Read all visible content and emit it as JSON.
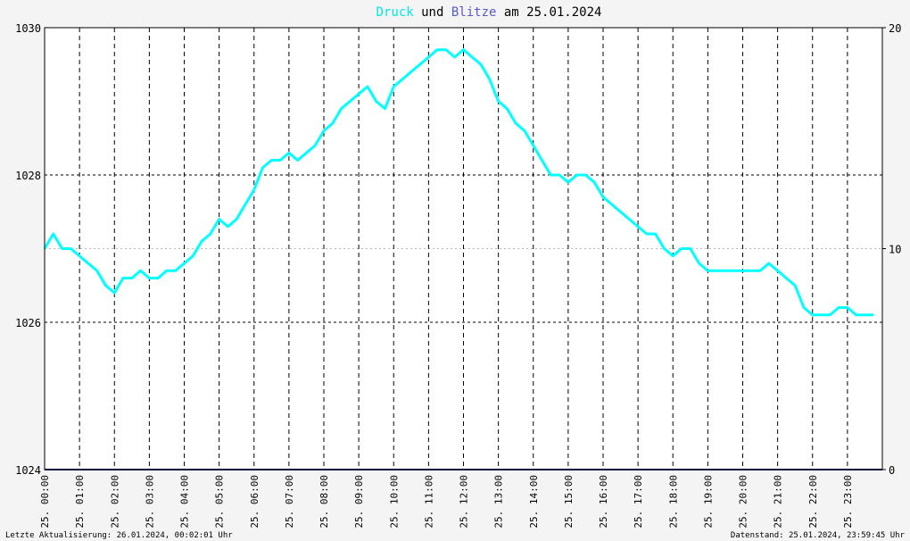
{
  "chart_data": {
    "type": "line",
    "title_parts": [
      {
        "text": "Druck",
        "color": "#00e8e8"
      },
      {
        "text": " und ",
        "color": "#000000"
      },
      {
        "text": "Blitze",
        "color": "#5a5ac8"
      },
      {
        "text": " am 25.01.2024",
        "color": "#000000"
      }
    ],
    "y_left": {
      "min": 1024,
      "max": 1030,
      "ticks": [
        1024,
        1026,
        1028,
        1030
      ]
    },
    "y_right": {
      "min": 0,
      "max": 20,
      "ticks": [
        0,
        10,
        20
      ]
    },
    "x_range_hours": [
      0,
      24
    ],
    "x_ticks": [
      "25. 00:00",
      "25. 01:00",
      "25. 02:00",
      "25. 03:00",
      "25. 04:00",
      "25. 05:00",
      "25. 06:00",
      "25. 07:00",
      "25. 08:00",
      "25. 09:00",
      "25. 10:00",
      "25. 11:00",
      "25. 12:00",
      "25. 13:00",
      "25. 14:00",
      "25. 15:00",
      "25. 16:00",
      "25. 17:00",
      "25. 18:00",
      "25. 19:00",
      "25. 20:00",
      "25. 21:00",
      "25. 22:00",
      "25. 23:00"
    ],
    "grid": true,
    "series": [
      {
        "name": "Druck",
        "color": "#00ffff",
        "axis": "left",
        "x_hours": [
          0,
          0.25,
          0.5,
          0.75,
          1,
          1.25,
          1.5,
          1.75,
          2,
          2.25,
          2.5,
          2.75,
          3,
          3.25,
          3.5,
          3.75,
          4,
          4.25,
          4.5,
          4.75,
          5,
          5.25,
          5.5,
          5.75,
          6,
          6.25,
          6.5,
          6.75,
          7,
          7.25,
          7.5,
          7.75,
          8,
          8.25,
          8.5,
          8.75,
          9,
          9.25,
          9.5,
          9.75,
          10,
          10.25,
          10.5,
          10.75,
          11,
          11.25,
          11.5,
          11.75,
          12,
          12.25,
          12.5,
          12.75,
          13,
          13.25,
          13.5,
          13.75,
          14,
          14.25,
          14.5,
          14.75,
          15,
          15.25,
          15.5,
          15.75,
          16,
          16.25,
          16.5,
          16.75,
          17,
          17.25,
          17.5,
          17.75,
          18,
          18.25,
          18.5,
          18.75,
          19,
          19.25,
          19.5,
          19.75,
          20,
          20.25,
          20.5,
          20.75,
          21,
          21.25,
          21.5,
          21.75,
          22,
          22.25,
          22.5,
          22.75,
          23,
          23.25,
          23.5,
          23.75
        ],
        "values": [
          1027.0,
          1027.2,
          1027.0,
          1027.0,
          1026.9,
          1026.8,
          1026.7,
          1026.5,
          1026.4,
          1026.6,
          1026.6,
          1026.7,
          1026.6,
          1026.6,
          1026.7,
          1026.7,
          1026.8,
          1026.9,
          1027.1,
          1027.2,
          1027.4,
          1027.3,
          1027.4,
          1027.6,
          1027.8,
          1028.1,
          1028.2,
          1028.2,
          1028.3,
          1028.2,
          1028.3,
          1028.4,
          1028.6,
          1028.7,
          1028.9,
          1029.0,
          1029.1,
          1029.2,
          1029.0,
          1028.9,
          1029.2,
          1029.3,
          1029.4,
          1029.5,
          1029.6,
          1029.7,
          1029.7,
          1029.6,
          1029.7,
          1029.6,
          1029.5,
          1029.3,
          1029.0,
          1028.9,
          1028.7,
          1028.6,
          1028.4,
          1028.2,
          1028.0,
          1028.0,
          1027.9,
          1028.0,
          1028.0,
          1027.9,
          1027.7,
          1027.6,
          1027.5,
          1027.4,
          1027.3,
          1027.2,
          1027.2,
          1027.0,
          1026.9,
          1027.0,
          1027.0,
          1026.8,
          1026.7,
          1026.7,
          1026.7,
          1026.7,
          1026.7,
          1026.7,
          1026.7,
          1026.8,
          1026.7,
          1026.6,
          1026.5,
          1026.2,
          1026.1,
          1026.1,
          1026.1,
          1026.2,
          1026.2,
          1026.1,
          1026.1,
          1026.1
        ]
      },
      {
        "name": "Blitze",
        "color": "#1c1c7a",
        "axis": "right",
        "x_hours": [
          0,
          24
        ],
        "values": [
          0,
          0
        ]
      }
    ]
  },
  "footer": {
    "left": "Letzte Aktualisierung: 26.01.2024, 00:02:01 Uhr",
    "right": "Datenstand: 25.01.2024, 23:59:45 Uhr"
  }
}
